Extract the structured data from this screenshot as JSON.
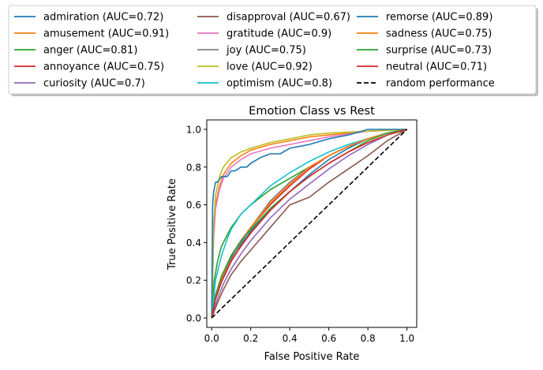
{
  "chart_data": {
    "type": "line",
    "title": "Emotion Class vs Rest",
    "xlabel": "False Positive Rate",
    "ylabel": "True Positive Rate",
    "xlim": [
      -0.025,
      1.05
    ],
    "ylim": [
      -0.05,
      1.05
    ],
    "xticks": [
      "0.0",
      "0.2",
      "0.4",
      "0.6",
      "0.8",
      "1.0"
    ],
    "yticks": [
      "0.0",
      "0.2",
      "0.4",
      "0.6",
      "0.8",
      "1.0"
    ],
    "grid": false,
    "legend_position": "top, outside plot, 3 columns, shadowed frame",
    "series": [
      {
        "name": "admiration (AUC=0.72)",
        "color": "#1f77b4",
        "auc": 0.72,
        "x": [
          0,
          0.02,
          0.05,
          0.1,
          0.15,
          0.2,
          0.3,
          0.4,
          0.5,
          0.6,
          0.7,
          0.8,
          0.9,
          1
        ],
        "y": [
          0,
          0.12,
          0.22,
          0.32,
          0.39,
          0.46,
          0.58,
          0.67,
          0.76,
          0.84,
          0.9,
          0.95,
          0.98,
          1
        ]
      },
      {
        "name": "amusement (AUC=0.91)",
        "color": "#ff7f0e",
        "auc": 0.91,
        "x": [
          0,
          0.01,
          0.02,
          0.04,
          0.06,
          0.1,
          0.15,
          0.2,
          0.3,
          0.4,
          0.5,
          0.6,
          0.8,
          1
        ],
        "y": [
          0,
          0.45,
          0.6,
          0.7,
          0.76,
          0.82,
          0.86,
          0.89,
          0.92,
          0.94,
          0.96,
          0.97,
          0.99,
          1
        ]
      },
      {
        "name": "anger (AUC=0.81)",
        "color": "#2ca02c",
        "auc": 0.81,
        "x": [
          0,
          0.01,
          0.03,
          0.05,
          0.1,
          0.15,
          0.2,
          0.3,
          0.4,
          0.5,
          0.6,
          0.7,
          0.8,
          0.9,
          1
        ],
        "y": [
          0,
          0.18,
          0.3,
          0.38,
          0.48,
          0.55,
          0.6,
          0.68,
          0.74,
          0.8,
          0.86,
          0.91,
          0.95,
          0.98,
          1
        ]
      },
      {
        "name": "annoyance (AUC=0.75)",
        "color": "#d62728",
        "auc": 0.75,
        "x": [
          0,
          0.02,
          0.05,
          0.1,
          0.15,
          0.2,
          0.3,
          0.4,
          0.5,
          0.6,
          0.7,
          0.8,
          0.9,
          1
        ],
        "y": [
          0,
          0.12,
          0.22,
          0.33,
          0.41,
          0.48,
          0.6,
          0.7,
          0.79,
          0.86,
          0.91,
          0.95,
          0.98,
          1
        ]
      },
      {
        "name": "curiosity (AUC=0.7)",
        "color": "#9467bd",
        "auc": 0.7,
        "x": [
          0,
          0.03,
          0.06,
          0.1,
          0.15,
          0.2,
          0.3,
          0.4,
          0.5,
          0.6,
          0.7,
          0.8,
          0.9,
          1
        ],
        "y": [
          0,
          0.1,
          0.18,
          0.26,
          0.34,
          0.41,
          0.53,
          0.63,
          0.71,
          0.79,
          0.86,
          0.92,
          0.97,
          1
        ]
      },
      {
        "name": "disapproval (AUC=0.67)",
        "color": "#8c564b",
        "auc": 0.67,
        "x": [
          0,
          0.03,
          0.06,
          0.1,
          0.15,
          0.2,
          0.3,
          0.4,
          0.5,
          0.6,
          0.7,
          0.8,
          0.9,
          1
        ],
        "y": [
          0,
          0.08,
          0.15,
          0.23,
          0.3,
          0.36,
          0.48,
          0.6,
          0.64,
          0.72,
          0.79,
          0.86,
          0.94,
          1
        ]
      },
      {
        "name": "gratitude (AUC=0.9)",
        "color": "#e377c2",
        "auc": 0.9,
        "x": [
          0,
          0.01,
          0.02,
          0.04,
          0.06,
          0.1,
          0.15,
          0.2,
          0.3,
          0.4,
          0.5,
          0.6,
          0.8,
          1
        ],
        "y": [
          0,
          0.42,
          0.58,
          0.68,
          0.74,
          0.8,
          0.84,
          0.87,
          0.9,
          0.92,
          0.94,
          0.96,
          0.99,
          1
        ]
      },
      {
        "name": "joy (AUC=0.75)",
        "color": "#7f7f7f",
        "auc": 0.75,
        "x": [
          0,
          0.02,
          0.05,
          0.1,
          0.15,
          0.2,
          0.3,
          0.4,
          0.5,
          0.6,
          0.7,
          0.8,
          0.9,
          1
        ],
        "y": [
          0,
          0.1,
          0.2,
          0.31,
          0.4,
          0.48,
          0.62,
          0.72,
          0.8,
          0.86,
          0.91,
          0.95,
          0.98,
          1
        ]
      },
      {
        "name": "love (AUC=0.92)",
        "color": "#bcbd22",
        "auc": 0.92,
        "x": [
          0,
          0.01,
          0.02,
          0.04,
          0.06,
          0.1,
          0.15,
          0.2,
          0.3,
          0.4,
          0.5,
          0.6,
          0.8,
          1
        ],
        "y": [
          0,
          0.5,
          0.65,
          0.75,
          0.8,
          0.85,
          0.88,
          0.9,
          0.93,
          0.95,
          0.97,
          0.98,
          0.99,
          1
        ]
      },
      {
        "name": "optimism (AUC=0.8)",
        "color": "#17becf",
        "auc": 0.8,
        "x": [
          0,
          0.02,
          0.05,
          0.08,
          0.1,
          0.15,
          0.2,
          0.3,
          0.4,
          0.5,
          0.6,
          0.7,
          0.8,
          0.9,
          1
        ],
        "y": [
          0,
          0.2,
          0.33,
          0.42,
          0.47,
          0.55,
          0.6,
          0.7,
          0.77,
          0.83,
          0.88,
          0.92,
          0.95,
          0.98,
          1
        ]
      },
      {
        "name": "remorse (AUC=0.89)",
        "color": "#1f77b4",
        "auc": 0.89,
        "x": [
          0,
          0.005,
          0.01,
          0.02,
          0.03,
          0.05,
          0.08,
          0.1,
          0.12,
          0.15,
          0.18,
          0.2,
          0.25,
          0.3,
          0.35,
          0.4,
          0.5,
          0.6,
          0.7,
          0.8,
          1
        ],
        "y": [
          0,
          0.6,
          0.67,
          0.72,
          0.72,
          0.75,
          0.75,
          0.78,
          0.78,
          0.8,
          0.8,
          0.82,
          0.85,
          0.87,
          0.87,
          0.9,
          0.92,
          0.95,
          0.97,
          1,
          1
        ]
      },
      {
        "name": "sadness (AUC=0.75)",
        "color": "#ff7f0e",
        "auc": 0.75,
        "x": [
          0,
          0.02,
          0.05,
          0.1,
          0.15,
          0.2,
          0.3,
          0.4,
          0.5,
          0.6,
          0.7,
          0.8,
          0.9,
          1
        ],
        "y": [
          0,
          0.11,
          0.21,
          0.33,
          0.41,
          0.48,
          0.61,
          0.71,
          0.8,
          0.86,
          0.91,
          0.95,
          0.98,
          1
        ]
      },
      {
        "name": "surprise (AUC=0.73)",
        "color": "#2ca02c",
        "auc": 0.73,
        "x": [
          0,
          0.02,
          0.05,
          0.1,
          0.15,
          0.2,
          0.3,
          0.4,
          0.5,
          0.6,
          0.7,
          0.8,
          0.9,
          1
        ],
        "y": [
          0,
          0.12,
          0.22,
          0.33,
          0.41,
          0.47,
          0.58,
          0.67,
          0.75,
          0.82,
          0.88,
          0.94,
          0.98,
          1
        ]
      },
      {
        "name": "neutral (AUC=0.71)",
        "color": "#d62728",
        "auc": 0.71,
        "x": [
          0,
          0.02,
          0.05,
          0.1,
          0.15,
          0.2,
          0.3,
          0.4,
          0.5,
          0.6,
          0.7,
          0.8,
          0.9,
          1
        ],
        "y": [
          0,
          0.1,
          0.19,
          0.3,
          0.38,
          0.45,
          0.57,
          0.67,
          0.75,
          0.82,
          0.88,
          0.93,
          0.97,
          1
        ]
      },
      {
        "name": "random performance",
        "color": "#000000",
        "dashed": true,
        "x": [
          0,
          1
        ],
        "y": [
          0,
          1
        ]
      }
    ]
  }
}
